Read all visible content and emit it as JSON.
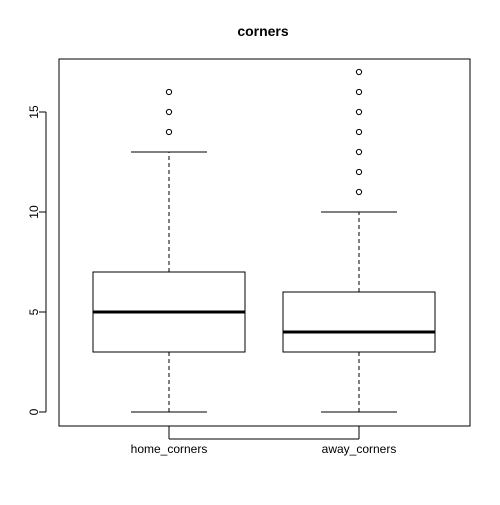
{
  "chart_data": {
    "type": "boxplot",
    "title": "corners",
    "xlabel": "",
    "ylabel": "",
    "ylim": [
      -0.7,
      17.7
    ],
    "y_ticks": [
      0,
      5,
      10,
      15
    ],
    "grid": false,
    "legend": "none",
    "categories": [
      "home_corners",
      "away_corners"
    ],
    "series": [
      {
        "name": "home_corners",
        "whisker_low": 0,
        "q1": 3,
        "median": 5,
        "q3": 7,
        "whisker_high": 13,
        "outliers": [
          14,
          15,
          16
        ]
      },
      {
        "name": "away_corners",
        "whisker_low": 0,
        "q1": 3,
        "median": 4,
        "q3": 6,
        "whisker_high": 10,
        "outliers": [
          11,
          12,
          13,
          14,
          15,
          16,
          17
        ]
      }
    ],
    "colors": {
      "box_fill": "#ffffff",
      "stroke": "#000000"
    }
  }
}
